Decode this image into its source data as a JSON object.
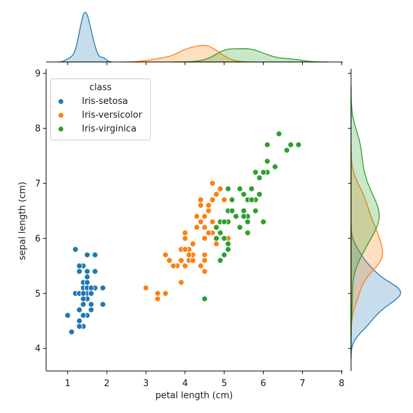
{
  "chart_data": {
    "type": "scatter",
    "subtype": "jointplot",
    "title": "",
    "xlabel": "petal length (cm)",
    "ylabel": "sepal length (cm)",
    "legend_title": "class",
    "legend_position": "upper left",
    "grid": false,
    "xlim": [
      0.45,
      8.03
    ],
    "ylim": [
      3.59,
      9.08
    ],
    "xticks": [
      1,
      2,
      3,
      4,
      5,
      6,
      7,
      8
    ],
    "yticks": [
      4,
      5,
      6,
      7,
      8,
      9
    ],
    "marginals": {
      "top": "kde-of-x",
      "right": "kde-of-y",
      "fill_opacity": 0.25
    },
    "series": [
      {
        "name": "Iris-setosa",
        "color": "#1f77b4",
        "x": [
          1.4,
          1.4,
          1.3,
          1.5,
          1.4,
          1.7,
          1.4,
          1.5,
          1.4,
          1.5,
          1.5,
          1.6,
          1.4,
          1.1,
          1.2,
          1.5,
          1.3,
          1.4,
          1.7,
          1.5,
          1.7,
          1.5,
          1.0,
          1.7,
          1.9,
          1.6,
          1.6,
          1.5,
          1.4,
          1.6,
          1.6,
          1.5,
          1.5,
          1.4,
          1.5,
          1.2,
          1.3,
          1.4,
          1.3,
          1.5,
          1.3,
          1.3,
          1.3,
          1.6,
          1.9,
          1.4,
          1.6,
          1.4,
          1.5,
          1.4
        ],
        "y": [
          5.1,
          4.9,
          4.7,
          4.6,
          5.0,
          5.4,
          4.6,
          5.0,
          4.4,
          4.9,
          5.4,
          4.8,
          4.8,
          4.3,
          5.8,
          5.7,
          5.4,
          5.1,
          5.7,
          5.1,
          5.4,
          5.1,
          4.6,
          5.1,
          4.8,
          5.0,
          5.0,
          5.2,
          5.2,
          4.7,
          4.8,
          5.4,
          5.2,
          5.5,
          4.9,
          5.0,
          5.5,
          4.9,
          4.4,
          5.1,
          5.0,
          4.5,
          4.4,
          5.0,
          5.1,
          4.8,
          5.1,
          4.6,
          5.3,
          5.0
        ]
      },
      {
        "name": "Iris-versicolor",
        "color": "#ff7f0e",
        "x": [
          4.7,
          4.5,
          4.9,
          4.0,
          4.6,
          4.5,
          4.7,
          3.3,
          4.6,
          3.9,
          3.5,
          4.2,
          4.0,
          4.7,
          3.6,
          4.4,
          4.5,
          4.1,
          4.5,
          3.9,
          4.8,
          4.0,
          4.9,
          4.7,
          4.3,
          4.4,
          4.8,
          5.0,
          4.5,
          3.5,
          3.8,
          3.7,
          3.9,
          5.1,
          4.5,
          4.5,
          4.7,
          4.4,
          4.1,
          4.0,
          4.4,
          4.6,
          4.0,
          3.3,
          4.2,
          4.2,
          4.2,
          4.3,
          3.0,
          4.1
        ],
        "y": [
          7.0,
          6.4,
          6.9,
          5.5,
          6.5,
          5.7,
          6.3,
          4.9,
          6.6,
          5.2,
          5.0,
          5.9,
          6.0,
          6.1,
          5.6,
          6.7,
          5.6,
          5.8,
          6.2,
          5.6,
          5.9,
          6.1,
          6.3,
          6.1,
          6.4,
          6.6,
          6.8,
          6.7,
          6.0,
          5.7,
          5.5,
          5.5,
          5.8,
          6.0,
          5.4,
          6.0,
          6.7,
          6.3,
          5.6,
          5.5,
          5.5,
          6.1,
          5.8,
          5.0,
          5.6,
          5.7,
          5.7,
          6.2,
          5.1,
          5.7
        ]
      },
      {
        "name": "Iris-virginica",
        "color": "#2ca02c",
        "x": [
          6.0,
          5.1,
          5.9,
          5.6,
          5.8,
          6.6,
          4.5,
          6.3,
          5.8,
          6.1,
          5.1,
          5.3,
          5.5,
          5.0,
          5.1,
          5.3,
          5.5,
          6.7,
          6.9,
          5.0,
          5.7,
          4.9,
          6.7,
          4.9,
          5.7,
          6.0,
          4.8,
          4.9,
          5.6,
          5.8,
          6.1,
          6.4,
          5.6,
          5.1,
          5.6,
          6.1,
          5.6,
          5.5,
          4.8,
          5.4,
          5.6,
          5.1,
          5.1,
          5.9,
          5.7,
          5.2,
          5.0,
          5.2,
          5.4,
          5.1
        ],
        "y": [
          6.3,
          5.8,
          7.1,
          6.3,
          6.5,
          7.6,
          4.9,
          7.3,
          6.7,
          7.2,
          6.5,
          6.4,
          6.8,
          5.7,
          5.8,
          6.4,
          6.5,
          7.7,
          7.7,
          6.0,
          6.9,
          5.6,
          7.7,
          6.3,
          6.7,
          7.2,
          6.2,
          6.1,
          6.4,
          7.2,
          7.4,
          7.9,
          6.4,
          6.3,
          6.1,
          7.7,
          6.3,
          6.4,
          6.0,
          6.9,
          6.7,
          6.9,
          5.8,
          6.8,
          6.7,
          6.7,
          6.3,
          6.5,
          6.2,
          5.9
        ]
      }
    ]
  }
}
